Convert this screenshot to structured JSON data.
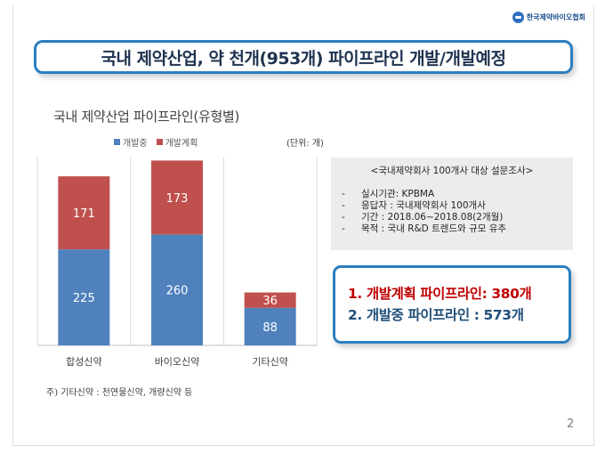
{
  "logo": {
    "text": "한국제약바이오협회"
  },
  "slide_title": "국내 제약산업, 약 천개(953개) 파이프라인 개발/개발예정",
  "chart_data": {
    "type": "bar",
    "stacked": true,
    "title": "국내 제약산업 파이프라인(유형별)",
    "unit_label": "(단위: 개)",
    "categories": [
      "합성신약",
      "바이오신약",
      "기타신약"
    ],
    "series": [
      {
        "name": "개발중",
        "color": "#4f81bd",
        "values": [
          225,
          260,
          88
        ]
      },
      {
        "name": "개발계획",
        "color": "#c0504d",
        "values": [
          171,
          173,
          36
        ]
      }
    ],
    "ylim": [
      0,
      440
    ],
    "grid": false,
    "legend_position": "top"
  },
  "note": "주) 기타신약 : 천연물신약, 개량신약 등",
  "survey": {
    "heading": "<국내제약회사 100개사 대상 설문조사>",
    "items": [
      {
        "dash": "-",
        "text": "실시기관: KPBMA"
      },
      {
        "dash": "-",
        "text": "응답자 : 국내제약회사 100개사"
      },
      {
        "dash": "-",
        "text": "기간 : 2018.06~2018.08(2개월)"
      },
      {
        "dash": "-",
        "text": "목적 : 국내 R&D 트렌드와 규모 유추"
      }
    ]
  },
  "results": [
    {
      "text": "1. 개발계획 파이프라인: 380개",
      "color": "#c00000"
    },
    {
      "text": "2. 개발중 파이프라인 : 573개",
      "color": "#1f4e79"
    }
  ],
  "page_number": "2"
}
